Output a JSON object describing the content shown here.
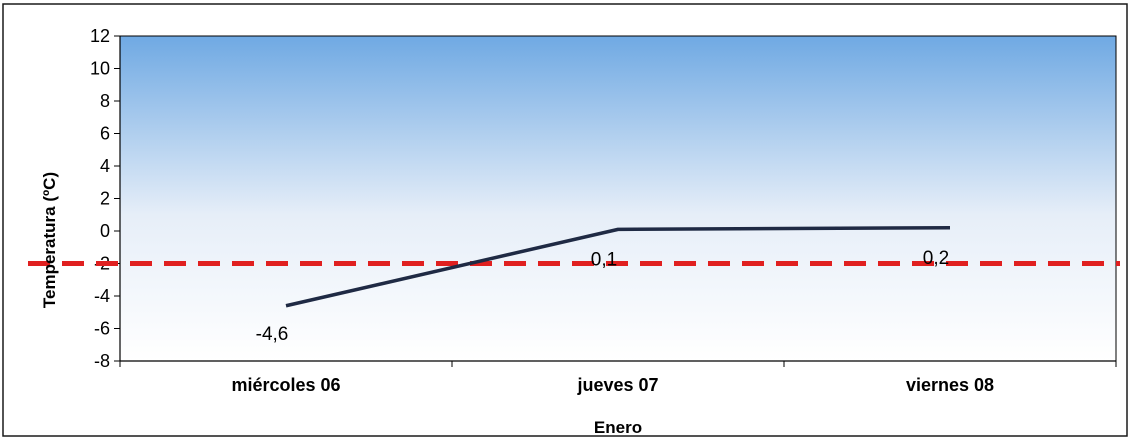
{
  "chart_data": {
    "type": "line",
    "title": "",
    "xlabel": "Enero",
    "ylabel": "Temperatura (ºC)",
    "categories": [
      "miércoles 06",
      "jueves 07",
      "viernes 08"
    ],
    "series": [
      {
        "values": [
          -4.6,
          0.1,
          0.2
        ],
        "data_labels": [
          "-4,6",
          "0,1",
          "0,2"
        ],
        "color": "#1f2a44"
      }
    ],
    "reference_line": {
      "y": -2,
      "color": "#e02020",
      "style": "dashed"
    },
    "ylim": [
      -8,
      12
    ],
    "yticks": [
      12,
      10,
      8,
      6,
      4,
      2,
      0,
      -2,
      -4,
      -6,
      -8
    ],
    "ytick_labels": [
      "12",
      "10",
      "8",
      "6",
      "4",
      "2",
      "0",
      "-2",
      "-4",
      "-6",
      "-8"
    ],
    "grid": false,
    "background_gradient": [
      "#6fa9e3",
      "#ffffff"
    ]
  }
}
